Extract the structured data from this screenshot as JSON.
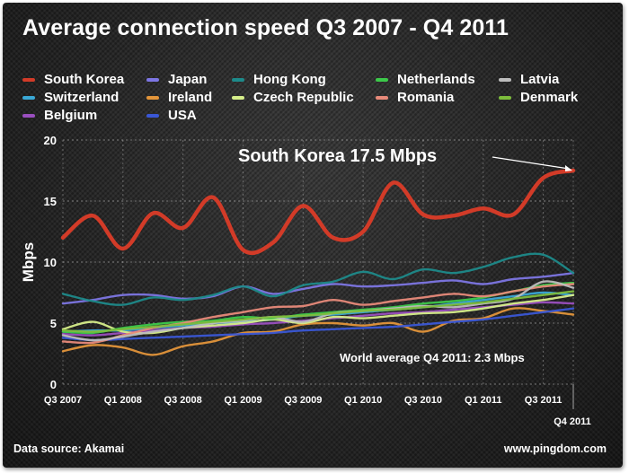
{
  "footer": {
    "source": "Data source: Akamai",
    "website": "www.pingdom.com"
  },
  "chart_data": {
    "type": "line",
    "title": "Average connection speed Q3 2007 - Q4 2011",
    "xlabel": "",
    "ylabel": "Mbps",
    "ylim": [
      0,
      20
    ],
    "yticks": [
      0,
      5,
      10,
      15,
      20
    ],
    "grid": true,
    "legend_position": "top",
    "categories": [
      "Q3 2007",
      "Q4 2007",
      "Q1 2008",
      "Q2 2008",
      "Q3 2008",
      "Q4 2008",
      "Q1 2009",
      "Q2 2009",
      "Q3 2009",
      "Q4 2009",
      "Q1 2010",
      "Q2 2010",
      "Q3 2010",
      "Q4 2010",
      "Q1 2011",
      "Q2 2011",
      "Q3 2011",
      "Q4 2011"
    ],
    "x_tick_labels": [
      "Q3 2007",
      "Q1 2008",
      "Q3 2008",
      "Q1 2009",
      "Q3 2009",
      "Q1 2010",
      "Q3 2010",
      "Q1 2011",
      "Q3 2011"
    ],
    "x_tick_label_last": "Q4 2011",
    "series": [
      {
        "name": "South Korea",
        "color": "#d23b28",
        "values": [
          12.0,
          13.8,
          11.1,
          14.0,
          12.8,
          15.3,
          11.0,
          11.6,
          14.6,
          12.0,
          12.5,
          16.5,
          13.9,
          13.8,
          14.4,
          13.9,
          16.9,
          17.5
        ]
      },
      {
        "name": "Switzerland",
        "color": "#3aa8d6",
        "values": [
          4.3,
          4.4,
          4.4,
          4.6,
          4.8,
          5.0,
          5.1,
          5.3,
          5.6,
          5.7,
          5.9,
          6.1,
          6.3,
          6.6,
          6.9,
          7.2,
          7.5,
          7.3
        ]
      },
      {
        "name": "Belgium",
        "color": "#9a4fbf",
        "values": [
          4.1,
          4.0,
          4.2,
          4.4,
          4.6,
          4.7,
          4.9,
          5.0,
          5.2,
          5.4,
          5.6,
          5.8,
          5.9,
          6.1,
          6.3,
          6.5,
          6.7,
          6.6
        ]
      },
      {
        "name": "Japan",
        "color": "#7d76e4",
        "values": [
          6.6,
          6.9,
          7.3,
          7.3,
          7.0,
          7.2,
          8.0,
          7.4,
          7.8,
          8.2,
          8.0,
          8.1,
          8.3,
          8.5,
          8.2,
          8.6,
          8.8,
          9.1
        ]
      },
      {
        "name": "Ireland",
        "color": "#e3953a",
        "values": [
          2.7,
          3.2,
          3.0,
          2.4,
          3.1,
          3.5,
          4.2,
          4.3,
          4.9,
          5.0,
          4.8,
          5.0,
          4.3,
          5.2,
          5.4,
          6.2,
          6.0,
          5.7
        ]
      },
      {
        "name": "USA",
        "color": "#3a57d6",
        "values": [
          3.8,
          3.6,
          3.7,
          3.8,
          3.9,
          4.0,
          4.1,
          4.2,
          4.4,
          4.5,
          4.6,
          4.7,
          4.9,
          5.1,
          5.3,
          5.6,
          5.9,
          6.2
        ]
      },
      {
        "name": "Hong Kong",
        "color": "#1d8a8a",
        "values": [
          7.4,
          6.8,
          6.5,
          7.1,
          6.9,
          7.3,
          8.0,
          7.2,
          8.1,
          8.4,
          9.2,
          8.6,
          9.4,
          9.1,
          9.6,
          10.4,
          10.6,
          9.1
        ]
      },
      {
        "name": "Czech Republic",
        "color": "#d6ee8a",
        "values": [
          4.5,
          5.1,
          4.3,
          4.2,
          4.6,
          4.8,
          5.0,
          5.3,
          5.0,
          5.5,
          5.4,
          5.6,
          5.8,
          5.9,
          6.2,
          6.6,
          6.9,
          7.3
        ]
      },
      {
        "name": "Netherlands",
        "color": "#3cc94a",
        "values": [
          4.3,
          4.2,
          4.6,
          4.9,
          5.1,
          5.2,
          5.5,
          5.4,
          5.7,
          5.9,
          6.1,
          6.3,
          6.6,
          6.8,
          7.1,
          7.6,
          8.1,
          8.3
        ]
      },
      {
        "name": "Romania",
        "color": "#e88a7a",
        "values": [
          3.5,
          3.4,
          4.0,
          4.6,
          5.0,
          5.5,
          5.9,
          6.3,
          6.4,
          6.9,
          6.5,
          6.8,
          7.1,
          7.4,
          7.2,
          7.6,
          8.0,
          8.2
        ]
      },
      {
        "name": "Latvia",
        "color": "#bdbdbd",
        "values": [
          4.0,
          3.6,
          3.9,
          4.3,
          4.6,
          5.0,
          5.2,
          5.5,
          5.1,
          5.8,
          6.0,
          6.2,
          6.4,
          6.3,
          6.6,
          7.0,
          8.4,
          7.9
        ]
      },
      {
        "name": "Denmark",
        "color": "#7dbd3c",
        "values": [
          4.4,
          4.3,
          4.5,
          4.7,
          4.9,
          5.1,
          5.3,
          5.5,
          5.6,
          5.8,
          6.0,
          6.1,
          6.3,
          6.5,
          6.7,
          7.0,
          7.3,
          7.6
        ]
      }
    ],
    "annotations": [
      {
        "text": "South Korea 17.5 Mbps",
        "target_series": "South Korea",
        "target_category": "Q4 2011"
      },
      {
        "text": "World average Q4 2011: 2.3 Mbps"
      }
    ]
  }
}
